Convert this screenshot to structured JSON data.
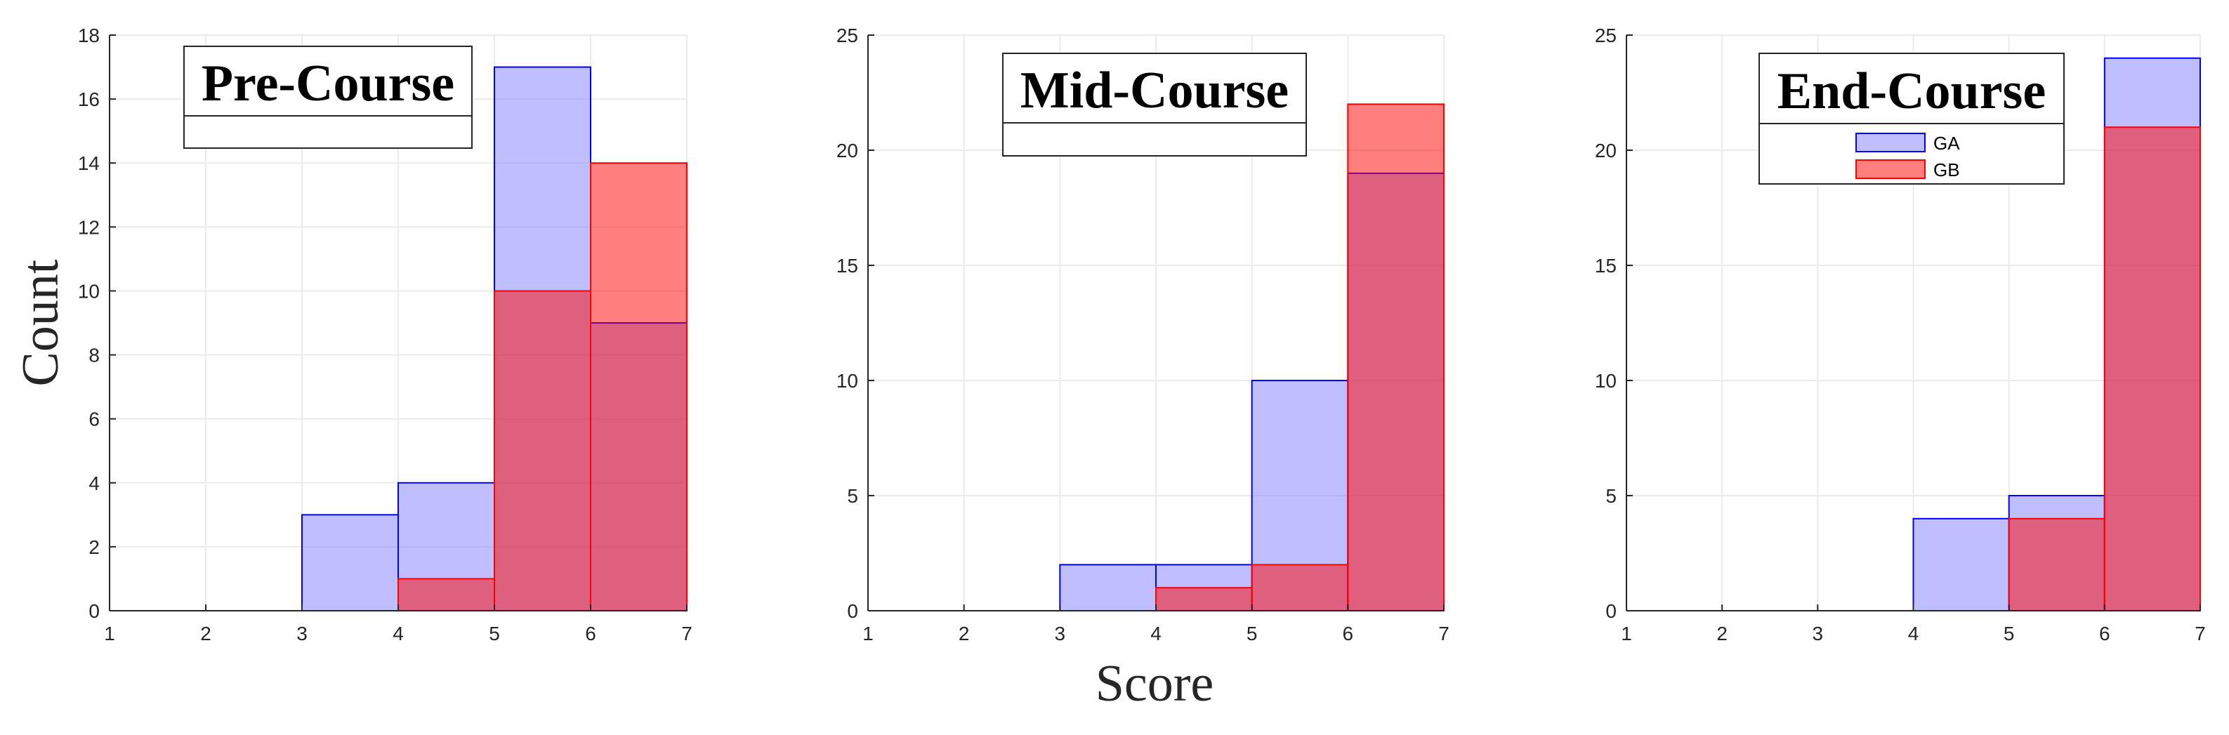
{
  "figure": {
    "ylabel": "Count",
    "xlabel": "Score"
  },
  "colors": {
    "GA_fill": "#8080ff",
    "GA_edge": "#0000ff",
    "GB_fill": "#ff0000",
    "GB_edge": "#ff0000",
    "grid": "#ebebeb",
    "axis": "#262626"
  },
  "chart_data": [
    {
      "type": "bar",
      "title": "Pre-Course",
      "bin_edges": [
        1,
        2,
        3,
        4,
        5,
        6,
        7
      ],
      "series": [
        {
          "name": "GA",
          "values": [
            0,
            0,
            3,
            4,
            17,
            9
          ]
        },
        {
          "name": "GB",
          "values": [
            0,
            0,
            0,
            1,
            10,
            14
          ]
        }
      ],
      "xlim": [
        1,
        7
      ],
      "ylim": [
        0,
        18
      ],
      "xticks": [
        1,
        2,
        3,
        4,
        5,
        6,
        7
      ],
      "yticks": [
        0,
        2,
        4,
        6,
        8,
        10,
        12,
        14,
        16,
        18
      ],
      "grid": true,
      "legend": null
    },
    {
      "type": "bar",
      "title": "Mid-Course",
      "bin_edges": [
        1,
        2,
        3,
        4,
        5,
        6,
        7
      ],
      "series": [
        {
          "name": "GA",
          "values": [
            0,
            0,
            2,
            2,
            10,
            19
          ]
        },
        {
          "name": "GB",
          "values": [
            0,
            0,
            0,
            1,
            2,
            22
          ]
        }
      ],
      "xlim": [
        1,
        7
      ],
      "ylim": [
        0,
        25
      ],
      "xticks": [
        1,
        2,
        3,
        4,
        5,
        6,
        7
      ],
      "yticks": [
        0,
        5,
        10,
        15,
        20,
        25
      ],
      "grid": true,
      "legend": null
    },
    {
      "type": "bar",
      "title": "End-Course",
      "bin_edges": [
        1,
        2,
        3,
        4,
        5,
        6,
        7
      ],
      "series": [
        {
          "name": "GA",
          "values": [
            0,
            0,
            0,
            4,
            5,
            24
          ]
        },
        {
          "name": "GB",
          "values": [
            0,
            0,
            0,
            0,
            4,
            21
          ]
        }
      ],
      "xlim": [
        1,
        7
      ],
      "ylim": [
        0,
        25
      ],
      "xticks": [
        1,
        2,
        3,
        4,
        5,
        6,
        7
      ],
      "yticks": [
        0,
        5,
        10,
        15,
        20,
        25
      ],
      "grid": true,
      "legend": {
        "position": "top",
        "entries": [
          "GA",
          "GB"
        ]
      }
    }
  ]
}
